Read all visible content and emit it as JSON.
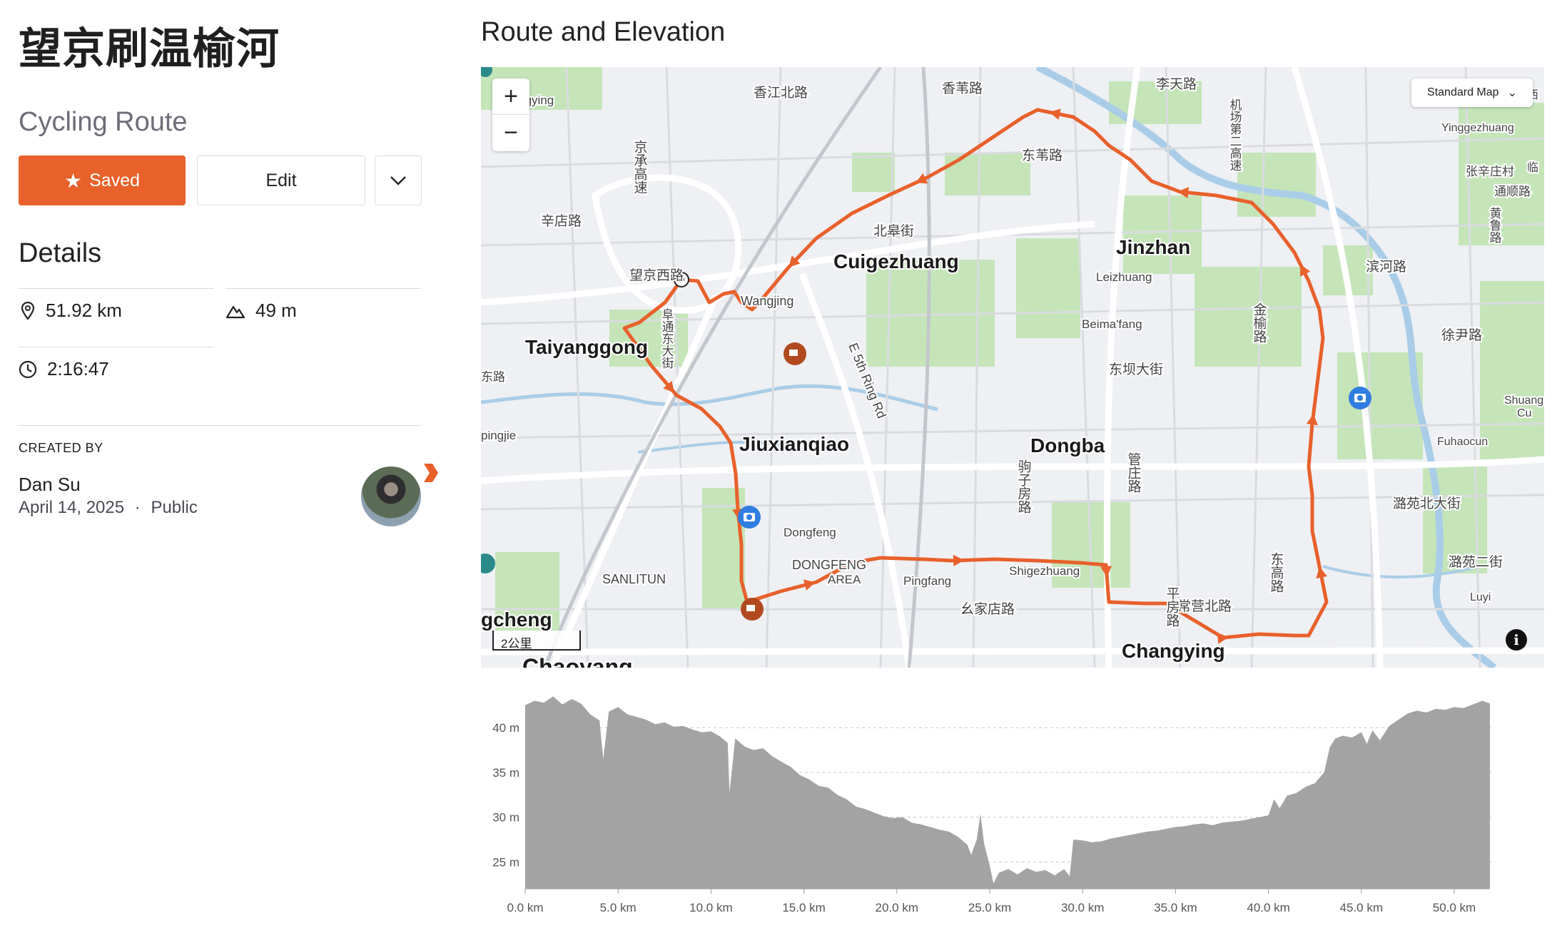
{
  "route": {
    "title": "望京刷温榆河",
    "type": "Cycling Route"
  },
  "actions": {
    "saved_label": "Saved",
    "edit_label": "Edit"
  },
  "details": {
    "heading": "Details",
    "distance": "51.92 km",
    "elevation_gain": "49 m",
    "moving_time": "2:16:47"
  },
  "creator": {
    "label": "CREATED BY",
    "name": "Dan Su",
    "date": "April 14, 2025",
    "separator": "·",
    "visibility": "Public"
  },
  "map": {
    "heading": "Route and Elevation",
    "style_selector": "Standard Map",
    "scale_label": "2公里",
    "colors": {
      "route": "#e8602a",
      "water": "#a9cde8",
      "park": "#c5e5b9",
      "road": "#ffffff"
    },
    "labels": [
      {
        "text": "Cuigezhuang",
        "bold": true
      },
      {
        "text": "Jinzhan",
        "bold": true
      },
      {
        "text": "Taiyanggong",
        "bold": true
      },
      {
        "text": "Jiuxianqiao",
        "bold": true
      },
      {
        "text": "Dongba",
        "bold": true
      },
      {
        "text": "Chaoyang",
        "bold": true
      },
      {
        "text": "Changying",
        "bold": true
      },
      {
        "text": "Wangjing",
        "bold": false
      },
      {
        "text": "Leizhuang",
        "bold": false
      },
      {
        "text": "Beima'fang",
        "bold": false
      },
      {
        "text": "Dongfeng",
        "bold": false
      },
      {
        "text": "Pingfang",
        "bold": false
      },
      {
        "text": "Shigezhuang",
        "bold": false
      },
      {
        "text": "Yinggezhuang",
        "bold": false
      },
      {
        "text": "Fuhaocun",
        "bold": false
      },
      {
        "text": "Luyi",
        "bold": false
      },
      {
        "text": "SANLITUN",
        "bold": false
      },
      {
        "text": "DONGFENG",
        "bold": false
      },
      {
        "text": "AREA",
        "bold": false
      },
      {
        "text": "E 5th Ring Rd",
        "bold": false
      },
      {
        "text": "香江北路",
        "bold": false
      },
      {
        "text": "香苇路",
        "bold": false
      },
      {
        "text": "李天路",
        "bold": false
      },
      {
        "text": "辛店路",
        "bold": false
      },
      {
        "text": "北皋街",
        "bold": false
      },
      {
        "text": "东苇路",
        "bold": false
      },
      {
        "text": "东坝大街",
        "bold": false
      },
      {
        "text": "徐尹路",
        "bold": false
      },
      {
        "text": "张辛庄村",
        "bold": false
      },
      {
        "text": "潞苑北大街",
        "bold": false
      },
      {
        "text": "潞苑二街",
        "bold": false
      },
      {
        "text": "幺家店路",
        "bold": false
      },
      {
        "text": "常营北路",
        "bold": false
      },
      {
        "text": "滨河路",
        "bold": false
      },
      {
        "text": "望京西路",
        "bold": false
      },
      {
        "text": "京承高速",
        "bold": false
      },
      {
        "text": "管庄路",
        "bold": false
      },
      {
        "text": "金榆路",
        "bold": false
      },
      {
        "text": "东高路",
        "bold": false
      },
      {
        "text": "平房路",
        "bold": false
      },
      {
        "text": "驹子房路",
        "bold": false
      },
      {
        "text": "iguangying",
        "bold": false
      },
      {
        "text": "pingjie",
        "bold": false
      },
      {
        "text": "gcheng",
        "bold": true
      },
      {
        "text": "Shuang",
        "bold": false
      },
      {
        "text": "Cu",
        "bold": false
      },
      {
        "text": "临",
        "bold": false
      },
      {
        "text": "西",
        "bold": false
      },
      {
        "text": "东路",
        "bold": false
      },
      {
        "text": "通顺路",
        "bold": false
      },
      {
        "text": "黄鲁路",
        "bold": false
      },
      {
        "text": "机场第二高速",
        "bold": false
      },
      {
        "text": "阜通东大街",
        "bold": false
      }
    ]
  },
  "elevation": {
    "yticks": [
      "40 m",
      "35 m",
      "30 m",
      "25 m"
    ],
    "xticks": [
      "0.0 km",
      "5.0 km",
      "10.0 km",
      "15.0 km",
      "20.0 km",
      "25.0 km",
      "30.0 km",
      "35.0 km",
      "40.0 km",
      "45.0 km",
      "50.0 km"
    ],
    "xlim": [
      0,
      51.92
    ],
    "ylim": [
      22,
      44
    ],
    "fill_color": "#9b9b9b",
    "profile": [
      [
        0.0,
        42.5
      ],
      [
        0.5,
        43.0
      ],
      [
        1.0,
        42.8
      ],
      [
        1.5,
        43.5
      ],
      [
        2.0,
        42.6
      ],
      [
        2.5,
        43.2
      ],
      [
        3.0,
        42.7
      ],
      [
        3.5,
        41.5
      ],
      [
        4.0,
        40.8
      ],
      [
        4.2,
        36.5
      ],
      [
        4.5,
        41.8
      ],
      [
        5.0,
        42.3
      ],
      [
        5.5,
        41.5
      ],
      [
        6.0,
        41.2
      ],
      [
        6.5,
        40.9
      ],
      [
        7.0,
        40.4
      ],
      [
        7.5,
        40.6
      ],
      [
        8.0,
        40.1
      ],
      [
        8.5,
        40.2
      ],
      [
        9.0,
        39.8
      ],
      [
        9.5,
        39.5
      ],
      [
        10.0,
        39.6
      ],
      [
        10.5,
        39.0
      ],
      [
        10.9,
        38.3
      ],
      [
        11.0,
        32.8
      ],
      [
        11.3,
        38.8
      ],
      [
        11.8,
        37.9
      ],
      [
        12.3,
        37.5
      ],
      [
        12.8,
        37.7
      ],
      [
        13.3,
        36.8
      ],
      [
        13.8,
        36.2
      ],
      [
        14.3,
        35.6
      ],
      [
        14.8,
        34.7
      ],
      [
        15.3,
        34.2
      ],
      [
        15.8,
        33.5
      ],
      [
        16.3,
        33.3
      ],
      [
        16.8,
        32.5
      ],
      [
        17.3,
        32.0
      ],
      [
        17.8,
        31.2
      ],
      [
        18.3,
        30.9
      ],
      [
        18.8,
        30.5
      ],
      [
        19.3,
        30.1
      ],
      [
        19.8,
        29.9
      ],
      [
        20.3,
        30.0
      ],
      [
        20.8,
        29.4
      ],
      [
        21.3,
        29.2
      ],
      [
        21.8,
        28.9
      ],
      [
        22.3,
        28.6
      ],
      [
        22.8,
        28.4
      ],
      [
        23.3,
        27.8
      ],
      [
        23.8,
        26.9
      ],
      [
        24.0,
        25.8
      ],
      [
        24.3,
        27.5
      ],
      [
        24.5,
        30.4
      ],
      [
        24.7,
        27.0
      ],
      [
        25.0,
        24.6
      ],
      [
        25.2,
        22.6
      ],
      [
        25.5,
        23.8
      ],
      [
        26.0,
        24.2
      ],
      [
        26.5,
        23.6
      ],
      [
        27.0,
        24.3
      ],
      [
        27.5,
        23.9
      ],
      [
        28.0,
        24.1
      ],
      [
        28.5,
        23.5
      ],
      [
        29.0,
        24.2
      ],
      [
        29.3,
        23.4
      ],
      [
        29.5,
        27.5
      ],
      [
        30.0,
        27.4
      ],
      [
        30.5,
        27.2
      ],
      [
        31.0,
        27.3
      ],
      [
        31.5,
        27.6
      ],
      [
        32.0,
        27.8
      ],
      [
        32.5,
        28.0
      ],
      [
        33.0,
        28.2
      ],
      [
        33.5,
        28.4
      ],
      [
        34.0,
        28.5
      ],
      [
        34.5,
        28.7
      ],
      [
        35.0,
        28.9
      ],
      [
        35.5,
        29.0
      ],
      [
        36.0,
        29.2
      ],
      [
        36.5,
        29.3
      ],
      [
        37.0,
        29.1
      ],
      [
        37.5,
        29.4
      ],
      [
        38.0,
        29.5
      ],
      [
        38.5,
        29.6
      ],
      [
        39.0,
        29.8
      ],
      [
        39.5,
        30.0
      ],
      [
        40.0,
        30.2
      ],
      [
        40.3,
        32.0
      ],
      [
        40.6,
        31.0
      ],
      [
        41.0,
        32.4
      ],
      [
        41.5,
        32.7
      ],
      [
        42.0,
        33.4
      ],
      [
        42.5,
        33.8
      ],
      [
        43.0,
        35.0
      ],
      [
        43.3,
        37.8
      ],
      [
        43.6,
        38.8
      ],
      [
        44.0,
        39.1
      ],
      [
        44.5,
        38.9
      ],
      [
        45.0,
        39.5
      ],
      [
        45.3,
        38.2
      ],
      [
        45.6,
        39.7
      ],
      [
        46.0,
        38.6
      ],
      [
        46.5,
        40.2
      ],
      [
        47.0,
        40.9
      ],
      [
        47.5,
        41.6
      ],
      [
        48.0,
        41.9
      ],
      [
        48.5,
        41.7
      ],
      [
        49.0,
        42.1
      ],
      [
        49.5,
        42.0
      ],
      [
        50.0,
        42.3
      ],
      [
        50.5,
        42.2
      ],
      [
        51.0,
        42.6
      ],
      [
        51.5,
        43.0
      ],
      [
        51.92,
        42.7
      ]
    ]
  }
}
